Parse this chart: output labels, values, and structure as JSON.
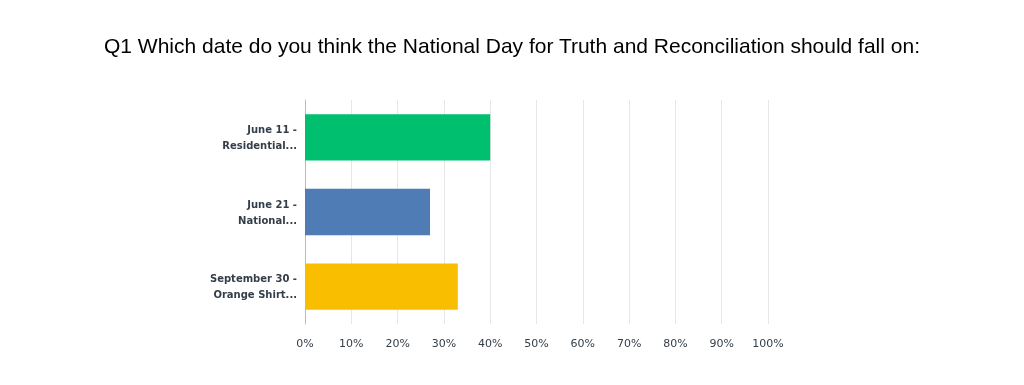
{
  "chart_data": {
    "type": "bar",
    "orientation": "horizontal",
    "title": "Q1 Which date do you think the National Day for Truth and Reconciliation should fall on:",
    "categories": [
      "June 11 -\nResidential...",
      "June 21 -\nNational...",
      "September 30 -\nOrange Shirt..."
    ],
    "values": [
      40,
      27,
      33
    ],
    "colors": [
      "#00bf6f",
      "#507cb6",
      "#f9be00"
    ],
    "xlim": [
      0,
      100
    ],
    "xticks": [
      {
        "value": 0,
        "label": "0%"
      },
      {
        "value": 10,
        "label": "10%"
      },
      {
        "value": 20,
        "label": "20%"
      },
      {
        "value": 30,
        "label": "30%"
      },
      {
        "value": 40,
        "label": "40%"
      },
      {
        "value": 50,
        "label": "50%"
      },
      {
        "value": 60,
        "label": "60%"
      },
      {
        "value": 70,
        "label": "70%"
      },
      {
        "value": 80,
        "label": "80%"
      },
      {
        "value": 90,
        "label": "90%"
      },
      {
        "value": 100,
        "label": "100%"
      }
    ],
    "grid": "x"
  }
}
